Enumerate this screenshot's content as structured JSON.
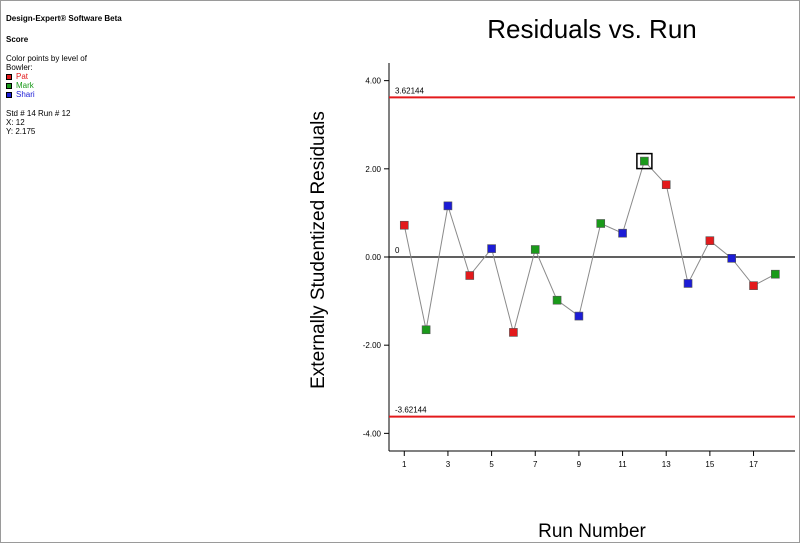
{
  "app_title": "Design-Expert® Software Beta",
  "response_name": "Score",
  "color_note_line1": "Color points by level of",
  "color_note_line2": "Bowler:",
  "legend": [
    {
      "label": "Pat",
      "color": "#e31a1c"
    },
    {
      "label": "Mark",
      "color": "#1a9a1a"
    },
    {
      "label": "Shari",
      "color": "#1c1cd6"
    }
  ],
  "selection": {
    "std_run": "Std # 14 Run # 12",
    "x_text": "X: 12",
    "y_text": "Y: 2.175"
  },
  "chart_data": {
    "type": "scatter",
    "title": "Residuals vs. Run",
    "xlabel": "Run Number",
    "ylabel": "Externally Studentized Residuals",
    "xlim": [
      0.3,
      18.9
    ],
    "ylim": [
      -4.4,
      4.4
    ],
    "x_ticks": [
      1,
      3,
      5,
      7,
      9,
      11,
      13,
      15,
      17
    ],
    "x_tick_labels": [
      "1",
      "3",
      "5",
      "7",
      "9",
      "11",
      "13",
      "15",
      "17"
    ],
    "y_ticks": [
      4,
      2,
      0,
      -2,
      -4
    ],
    "y_tick_labels": [
      "4.00",
      "2.00",
      "0.00",
      "-2.00",
      "-4.00"
    ],
    "zero_label": "0",
    "limits": [
      {
        "value": 3.62144,
        "label": "3.62144",
        "color": "#e31a1c"
      },
      {
        "value": -3.62144,
        "label": "-3.62144",
        "color": "#e31a1c"
      }
    ],
    "points": [
      {
        "x": 1,
        "y": 0.72,
        "group": "Pat"
      },
      {
        "x": 2,
        "y": -1.65,
        "group": "Mark"
      },
      {
        "x": 3,
        "y": 1.16,
        "group": "Shari"
      },
      {
        "x": 4,
        "y": -0.42,
        "group": "Pat"
      },
      {
        "x": 5,
        "y": 0.19,
        "group": "Shari"
      },
      {
        "x": 6,
        "y": -1.71,
        "group": "Pat"
      },
      {
        "x": 7,
        "y": 0.17,
        "group": "Mark"
      },
      {
        "x": 8,
        "y": -0.98,
        "group": "Mark"
      },
      {
        "x": 9,
        "y": -1.34,
        "group": "Shari"
      },
      {
        "x": 10,
        "y": 0.76,
        "group": "Mark"
      },
      {
        "x": 11,
        "y": 0.54,
        "group": "Shari"
      },
      {
        "x": 12,
        "y": 2.175,
        "group": "Mark",
        "selected": true
      },
      {
        "x": 13,
        "y": 1.64,
        "group": "Pat"
      },
      {
        "x": 14,
        "y": -0.6,
        "group": "Shari"
      },
      {
        "x": 15,
        "y": 0.37,
        "group": "Pat"
      },
      {
        "x": 16,
        "y": -0.03,
        "group": "Shari"
      },
      {
        "x": 17,
        "y": -0.65,
        "group": "Pat"
      },
      {
        "x": 18,
        "y": -0.39,
        "group": "Mark"
      }
    ]
  }
}
